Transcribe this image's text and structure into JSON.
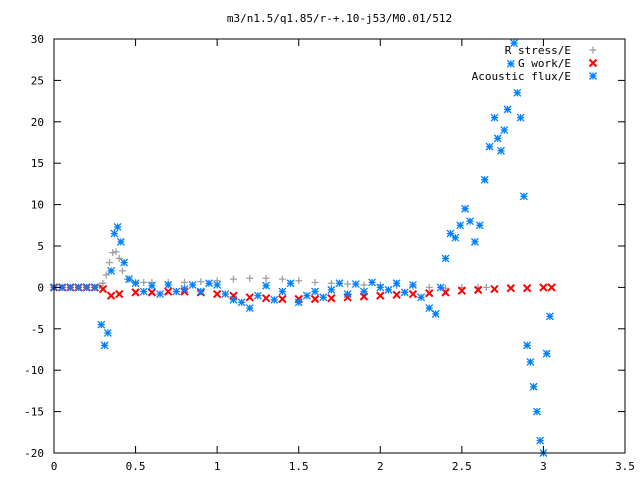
{
  "chart_data": {
    "type": "scatter",
    "title": "m3/n1.5/q1.85/r-+.10-j53/M0.01/512",
    "xlabel": "",
    "ylabel": "",
    "xlim": [
      0,
      3.5
    ],
    "ylim": [
      -20,
      30
    ],
    "xticks": [
      0,
      0.5,
      1,
      1.5,
      2,
      2.5,
      3,
      3.5
    ],
    "xtick_labels": [
      "0",
      "0.5",
      "1",
      "1.5",
      "2",
      "2.5",
      "3",
      "3.5"
    ],
    "yticks": [
      -20,
      -15,
      -10,
      -5,
      0,
      5,
      10,
      15,
      20,
      25,
      30
    ],
    "ytick_labels": [
      "-20",
      "-15",
      "-10",
      "-5",
      "0",
      "5",
      "10",
      "15",
      "20",
      "25",
      "30"
    ],
    "grid": false,
    "legend_position": "top-right",
    "series": [
      {
        "name": "R stress/E",
        "marker": "plus",
        "color": "#a0a0a0",
        "x": [
          0.0,
          0.05,
          0.1,
          0.15,
          0.2,
          0.25,
          0.28,
          0.3,
          0.32,
          0.34,
          0.36,
          0.38,
          0.4,
          0.42,
          0.45,
          0.5,
          0.55,
          0.6,
          0.7,
          0.8,
          0.9,
          1.0,
          1.1,
          1.2,
          1.3,
          1.4,
          1.5,
          1.6,
          1.7,
          1.8,
          1.9,
          2.0,
          2.1,
          2.2,
          2.3,
          2.4,
          2.5,
          2.6,
          2.65
        ],
        "y": [
          0,
          0,
          0,
          0,
          0,
          0,
          0.2,
          0.5,
          1.5,
          3.0,
          4.2,
          4.3,
          3.5,
          2.0,
          1.0,
          0.6,
          0.6,
          0.6,
          0.6,
          0.6,
          0.7,
          0.8,
          1.0,
          1.1,
          1.1,
          1.0,
          0.8,
          0.6,
          0.5,
          0.4,
          0.3,
          0.3,
          0.2,
          0.1,
          0.0,
          -0.1,
          0.0,
          0.0,
          0.0
        ]
      },
      {
        "name": "G work/E",
        "marker": "cross",
        "color": "#ff0000",
        "x": [
          0.0,
          0.05,
          0.1,
          0.15,
          0.2,
          0.25,
          0.3,
          0.35,
          0.4,
          0.5,
          0.6,
          0.7,
          0.8,
          0.9,
          1.0,
          1.1,
          1.2,
          1.3,
          1.4,
          1.5,
          1.6,
          1.7,
          1.8,
          1.9,
          2.0,
          2.1,
          2.2,
          2.3,
          2.4,
          2.5,
          2.6,
          2.7,
          2.8,
          2.9,
          3.0,
          3.05
        ],
        "y": [
          0,
          0,
          0,
          0,
          0,
          0,
          -0.2,
          -1.0,
          -0.8,
          -0.6,
          -0.6,
          -0.5,
          -0.5,
          -0.6,
          -0.8,
          -1.0,
          -1.2,
          -1.3,
          -1.4,
          -1.4,
          -1.4,
          -1.3,
          -1.2,
          -1.1,
          -1.0,
          -0.9,
          -0.8,
          -0.7,
          -0.6,
          -0.4,
          -0.3,
          -0.2,
          -0.1,
          -0.1,
          0.0,
          0.0
        ]
      },
      {
        "name": "Acoustic flux/E",
        "marker": "star",
        "color": "#0080ff",
        "x": [
          0.0,
          0.05,
          0.1,
          0.15,
          0.2,
          0.25,
          0.29,
          0.31,
          0.33,
          0.35,
          0.37,
          0.39,
          0.41,
          0.43,
          0.46,
          0.5,
          0.55,
          0.6,
          0.65,
          0.7,
          0.75,
          0.8,
          0.85,
          0.9,
          0.95,
          1.0,
          1.05,
          1.1,
          1.15,
          1.2,
          1.25,
          1.3,
          1.35,
          1.4,
          1.45,
          1.5,
          1.55,
          1.6,
          1.65,
          1.7,
          1.75,
          1.8,
          1.85,
          1.9,
          1.95,
          2.0,
          2.05,
          2.1,
          2.15,
          2.2,
          2.25,
          2.3,
          2.34,
          2.37,
          2.4,
          2.43,
          2.46,
          2.49,
          2.52,
          2.55,
          2.58,
          2.61,
          2.64,
          2.67,
          2.7,
          2.72,
          2.74,
          2.76,
          2.78,
          2.8,
          2.82,
          2.84,
          2.86,
          2.88,
          2.9,
          2.92,
          2.94,
          2.96,
          2.98,
          3.0,
          3.02,
          3.04
        ],
        "y": [
          0,
          0,
          0,
          0,
          0,
          0,
          -4.5,
          -7.0,
          -5.5,
          2.0,
          6.5,
          7.3,
          5.5,
          3.0,
          1.0,
          0.5,
          -0.5,
          0.2,
          -0.8,
          0.3,
          -0.5,
          -0.2,
          0.3,
          -0.5,
          0.5,
          0.3,
          -0.8,
          -1.5,
          -1.8,
          -2.5,
          -1.0,
          0.2,
          -1.5,
          -0.5,
          0.5,
          -1.8,
          -1.0,
          -0.5,
          -1.2,
          -0.3,
          0.5,
          -0.8,
          0.4,
          -0.5,
          0.6,
          0.0,
          -0.3,
          0.5,
          -0.6,
          0.3,
          -1.2,
          -2.5,
          -3.2,
          0.0,
          3.5,
          6.5,
          6.0,
          7.5,
          9.5,
          8.0,
          5.5,
          7.5,
          13.0,
          17.0,
          20.5,
          18.0,
          16.5,
          19.0,
          21.5,
          27.0,
          29.5,
          23.5,
          20.5,
          11.0,
          -7.0,
          -9.0,
          -12.0,
          -15.0,
          -18.5,
          -20.0,
          -8.0,
          -3.5
        ]
      }
    ]
  }
}
